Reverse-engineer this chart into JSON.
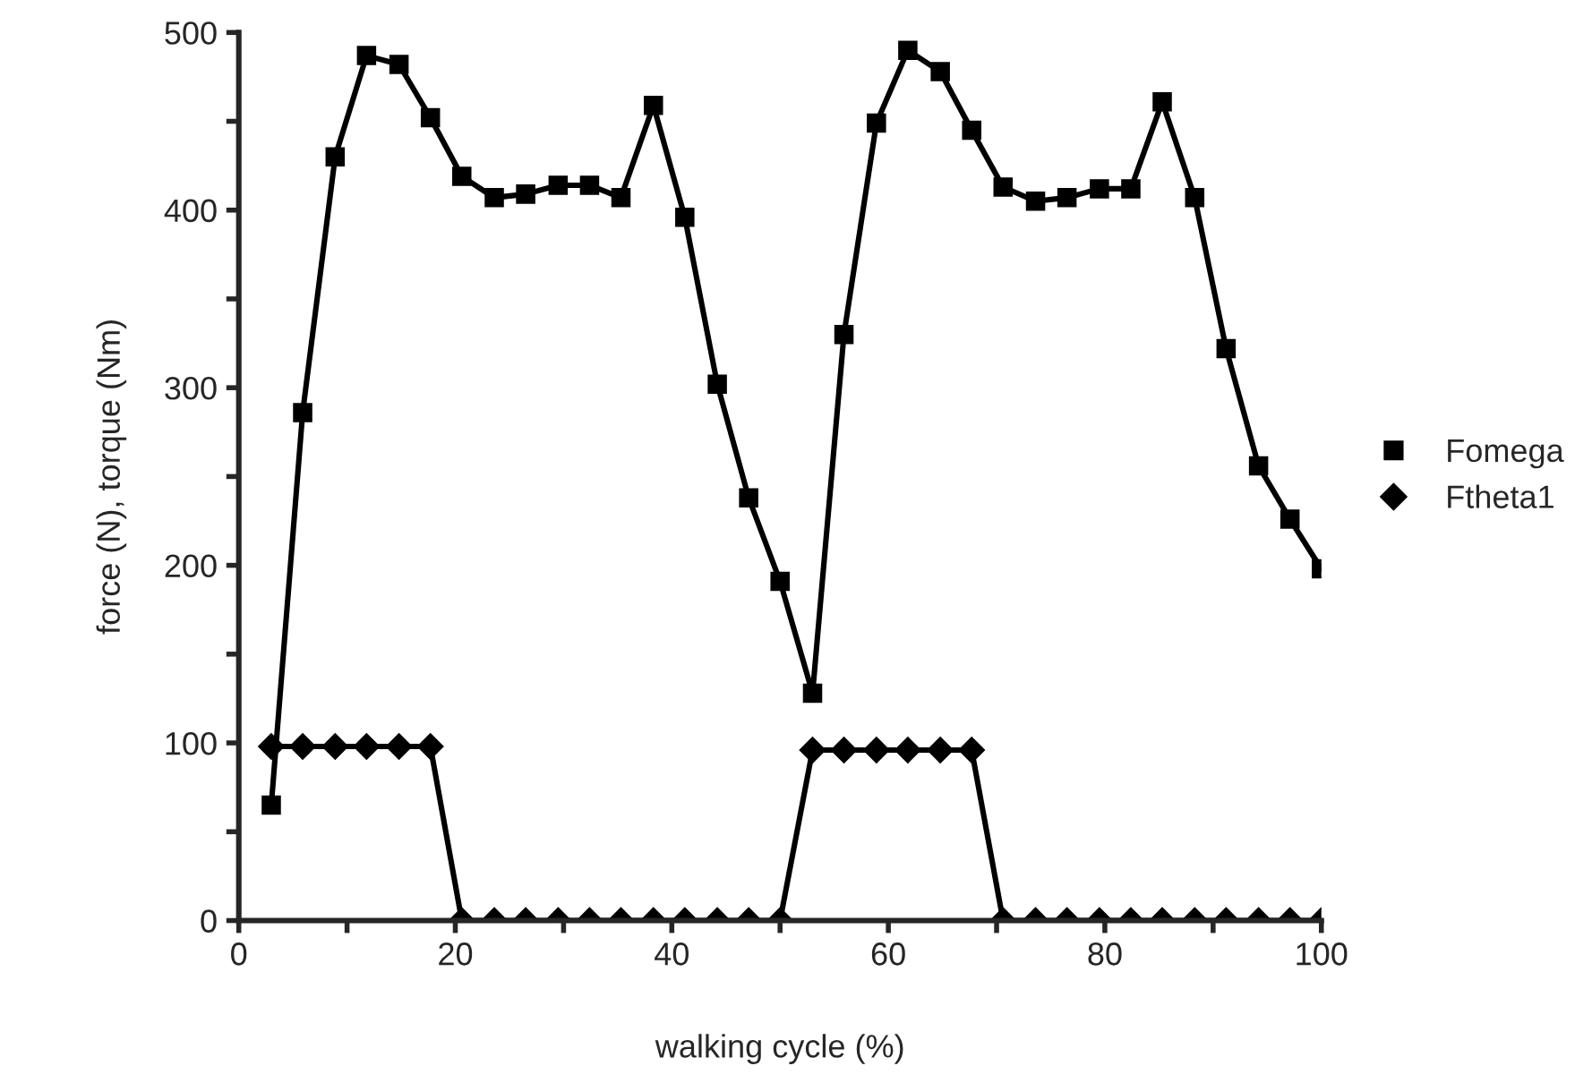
{
  "chart_data": {
    "type": "line",
    "xlabel": "walking cycle (%)",
    "ylabel": "force (N), torque (Nm)",
    "x": [
      3,
      5.9,
      8.9,
      11.8,
      14.8,
      17.7,
      20.6,
      23.6,
      26.5,
      29.5,
      32.4,
      35.3,
      38.3,
      41.2,
      44.2,
      47.1,
      50,
      53,
      55.9,
      58.9,
      61.8,
      64.8,
      67.7,
      70.6,
      73.6,
      76.5,
      79.5,
      82.4,
      85.3,
      88.3,
      91.2,
      94.2,
      97.1,
      100
    ],
    "series": [
      {
        "name": "Fomega",
        "color": "#000000",
        "marker": "square",
        "values": [
          65,
          286,
          430,
          487,
          482,
          452,
          419,
          407,
          409,
          414,
          414,
          407,
          459,
          396,
          302,
          238,
          191,
          128,
          330,
          449,
          490,
          478,
          445,
          413,
          405,
          407,
          412,
          412,
          461,
          407,
          322,
          256,
          226,
          198
        ]
      },
      {
        "name": "Ftheta1",
        "color": "#000000",
        "marker": "diamond",
        "values": [
          98,
          98,
          98,
          98,
          98,
          98,
          0,
          0,
          0,
          0,
          0,
          0,
          0,
          0,
          0,
          0,
          0,
          96,
          96,
          96,
          96,
          96,
          96,
          0,
          0,
          0,
          0,
          0,
          0,
          0,
          0,
          0,
          0,
          0
        ]
      }
    ],
    "xlim": [
      0,
      100
    ],
    "ylim": [
      0,
      500
    ],
    "xticks": [
      0,
      {
        "value": 10,
        "label": null
      },
      20,
      {
        "value": 30,
        "label": null
      },
      40,
      {
        "value": 50,
        "label": null
      },
      60,
      {
        "value": 70,
        "label": null
      },
      80,
      {
        "value": 90,
        "label": null
      },
      100
    ],
    "yticks": [
      0,
      {
        "value": 50,
        "label": null
      },
      100,
      {
        "value": 150,
        "label": null
      },
      200,
      {
        "value": 250,
        "label": null
      },
      300,
      {
        "value": 350,
        "label": null
      },
      400,
      {
        "value": 450,
        "label": null
      },
      500
    ],
    "grid": false,
    "legend": "right",
    "line_style": "solid"
  }
}
